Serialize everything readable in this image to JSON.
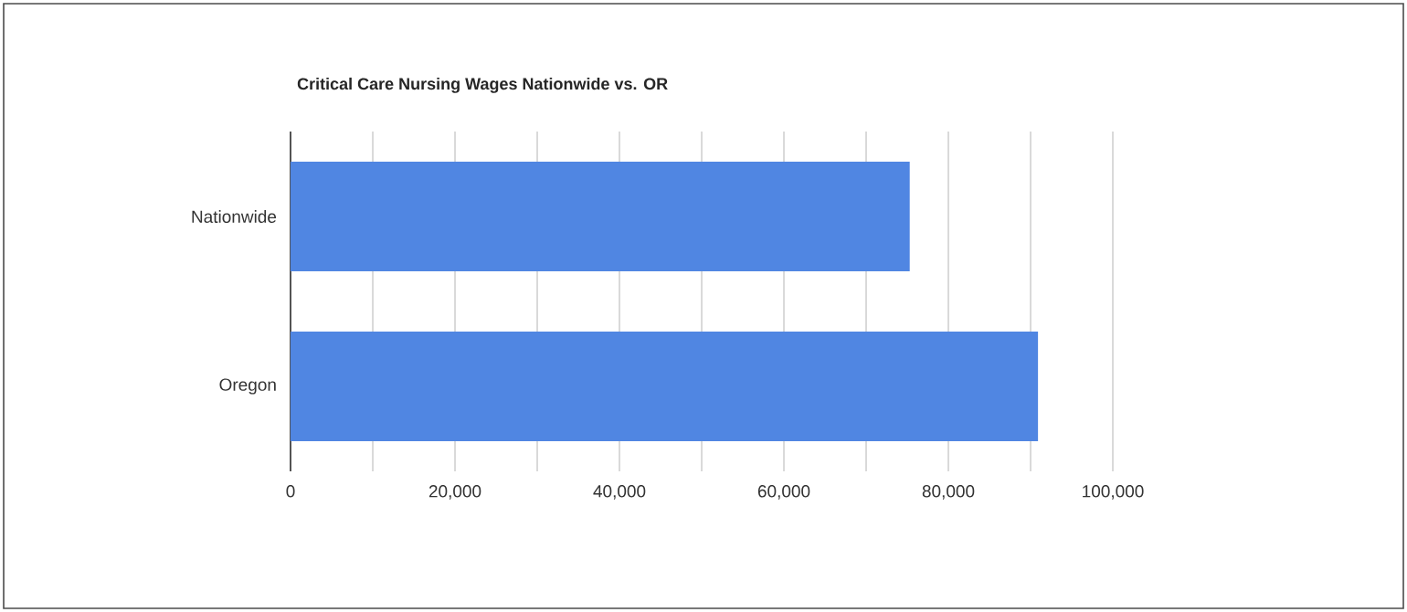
{
  "chart_data": {
    "type": "bar",
    "orientation": "horizontal",
    "title": "Critical Care Nursing Wages Nationwide vs. OR",
    "categories": [
      "Nationwide",
      "Oregon"
    ],
    "values": [
      75300,
      90900
    ],
    "color": "#5086e2",
    "xlim": [
      0,
      100000
    ],
    "xticks": [
      0,
      {
        "value": 10000,
        "label": null
      },
      {
        "value": 20000,
        "label": "20,000"
      },
      {
        "value": 30000,
        "label": null
      },
      {
        "value": 40000,
        "label": "40,000"
      },
      {
        "value": 50000,
        "label": null
      },
      {
        "value": 60000,
        "label": "60,000"
      },
      {
        "value": 70000,
        "label": null
      },
      {
        "value": 80000,
        "label": "80,000"
      },
      {
        "value": 90000,
        "label": null
      },
      {
        "value": 100000,
        "label": "100,000"
      }
    ],
    "grid": "x"
  }
}
